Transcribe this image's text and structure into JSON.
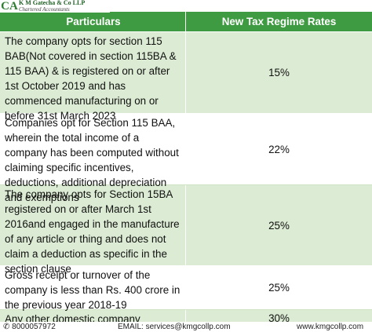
{
  "logo": {
    "mark": "CA",
    "firm": "K M Gatecha & Co LLP",
    "subtitle": "Chartered Accountants"
  },
  "table": {
    "header": [
      "Particulars",
      "New Tax Regime Rates"
    ],
    "rows": [
      [
        "The company opts for section 115 BAB(Not covered in section 115BA & 115 BAA) & is registered on or after 1st October 2019 and has commenced manufacturing on or before 31st March 2023",
        "15%"
      ],
      [
        "Companies opt for Section 115 BAA, wherein the total income of a company has been computed without claiming specific incentives, deductions, additional depreciation and exemptions",
        "22%"
      ],
      [
        "The company opts for Section 15BA registered on or after March 1st 2016and engaged in the manufacture of any article or thing and does not claim a deduction as specific in the section clause",
        "25%"
      ],
      [
        "Gross receipt or turnover of the company is less than Rs. 400 crore in the previous year 2018-19",
        "25%"
      ],
      [
        "Any other domestic company",
        "30%"
      ]
    ]
  },
  "footer": {
    "phone": "8000057972",
    "email": "EMAIL: services@kmgcollp.com",
    "website": "www.kmgcollp.com"
  }
}
